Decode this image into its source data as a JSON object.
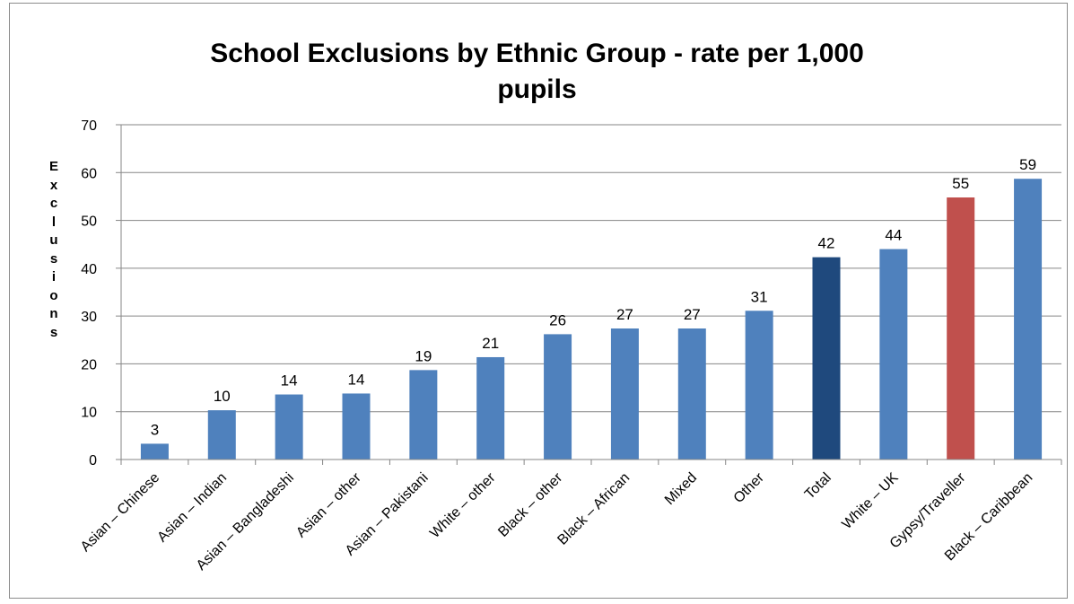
{
  "chart_data": {
    "type": "bar",
    "title": "School Exclusions by Ethnic Group - rate per 1,000 pupils",
    "ylabel": "Exclusions",
    "xlabel": "",
    "ylim": [
      0,
      70
    ],
    "yticks": [
      0,
      10,
      20,
      30,
      40,
      50,
      60,
      70
    ],
    "grid": true,
    "legend": "none",
    "categories": [
      "Asian – Chinese",
      "Asian – Indian",
      "Asian – Bangladeshi",
      "Asian – other",
      "Asian – Pakistani",
      "White – other",
      "Black – other",
      "Black – African",
      "Mixed",
      "Other",
      "Total",
      "White – UK",
      "Gypsy/Traveller",
      "Black – Caribbean"
    ],
    "values": [
      3.3,
      10.3,
      13.6,
      13.8,
      18.7,
      21.4,
      26.2,
      27.4,
      27.4,
      31.1,
      42.3,
      44.0,
      54.8,
      58.7
    ],
    "data_labels": [
      "3",
      "10",
      "14",
      "14",
      "19",
      "21",
      "26",
      "27",
      "27",
      "31",
      "42",
      "44",
      "55",
      "59"
    ],
    "colors": {
      "default": "#4f81bd",
      "highlight_total": "#1f497d",
      "highlight_gypsy": "#c0504d",
      "grid": "#868686"
    },
    "bar_colors": [
      "#4f81bd",
      "#4f81bd",
      "#4f81bd",
      "#4f81bd",
      "#4f81bd",
      "#4f81bd",
      "#4f81bd",
      "#4f81bd",
      "#4f81bd",
      "#4f81bd",
      "#1f497d",
      "#4f81bd",
      "#c0504d",
      "#4f81bd"
    ]
  }
}
